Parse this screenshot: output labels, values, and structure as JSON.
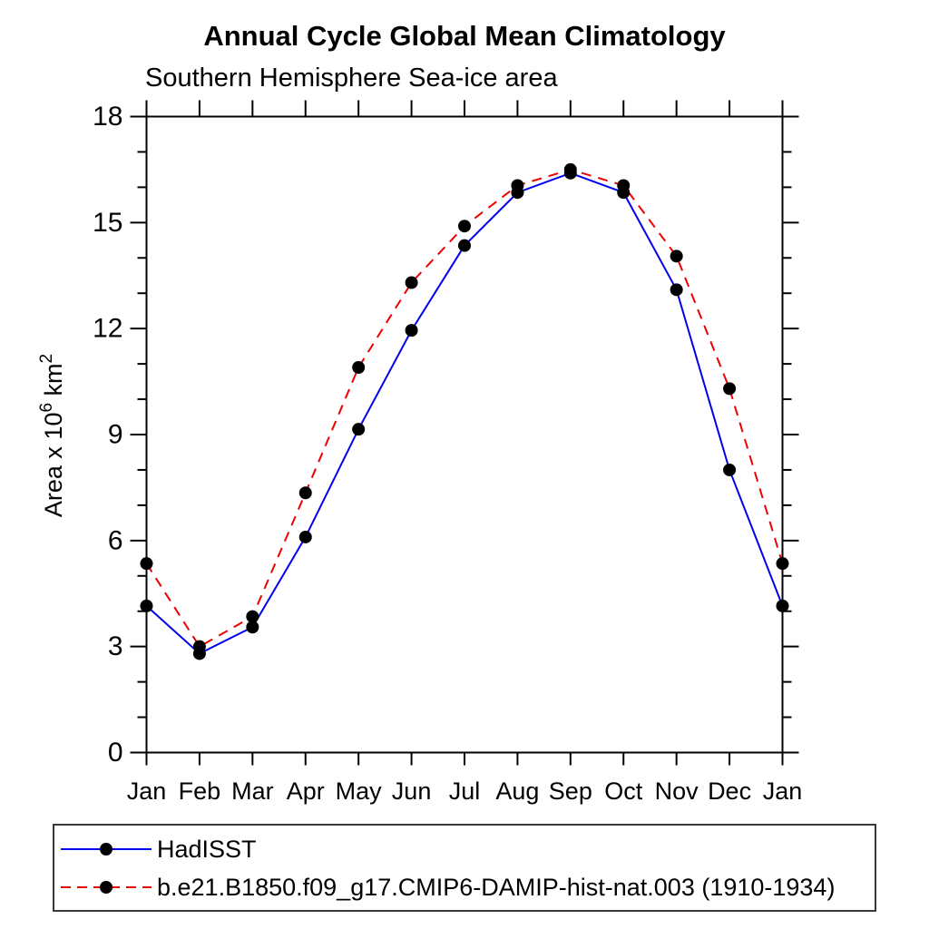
{
  "title": "Annual Cycle Global Mean Climatology",
  "subtitle": "Southern Hemisphere Sea-ice area",
  "chart_data": {
    "type": "line",
    "categories": [
      "Jan",
      "Feb",
      "Mar",
      "Apr",
      "May",
      "Jun",
      "Jul",
      "Aug",
      "Sep",
      "Oct",
      "Nov",
      "Dec",
      "Jan"
    ],
    "series": [
      {
        "id": "hadisst",
        "name": "HadISST",
        "color": "#0000ee",
        "line_style": "solid",
        "marker": "filled-circle",
        "marker_color": "#000000",
        "values": [
          4.15,
          2.8,
          3.55,
          6.1,
          9.15,
          11.95,
          14.35,
          15.85,
          16.4,
          15.85,
          13.1,
          8.0,
          4.15
        ]
      },
      {
        "id": "model",
        "name": "b.e21.B1850.f09_g17.CMIP6-DAMIP-hist-nat.003 (1910-1934)",
        "color": "#ee0000",
        "line_style": "dashed",
        "marker": "filled-circle",
        "marker_color": "#000000",
        "values": [
          5.35,
          3.0,
          3.85,
          7.35,
          10.9,
          13.3,
          14.9,
          16.05,
          16.5,
          16.05,
          14.05,
          10.3,
          5.35
        ]
      }
    ],
    "xlabel": "",
    "ylabel_parts": [
      {
        "t": "Area x 10",
        "sup": false
      },
      {
        "t": "6",
        "sup": true
      },
      {
        "t": " km",
        "sup": false
      },
      {
        "t": "2",
        "sup": true
      }
    ],
    "ylim": [
      0,
      18
    ],
    "y_major_ticks": [
      0,
      3,
      6,
      9,
      12,
      15,
      18
    ],
    "y_minor_interval": 1,
    "grid": "off",
    "frame": "box-with-outward-ticks",
    "legend_position": "below-plot-boxed"
  }
}
